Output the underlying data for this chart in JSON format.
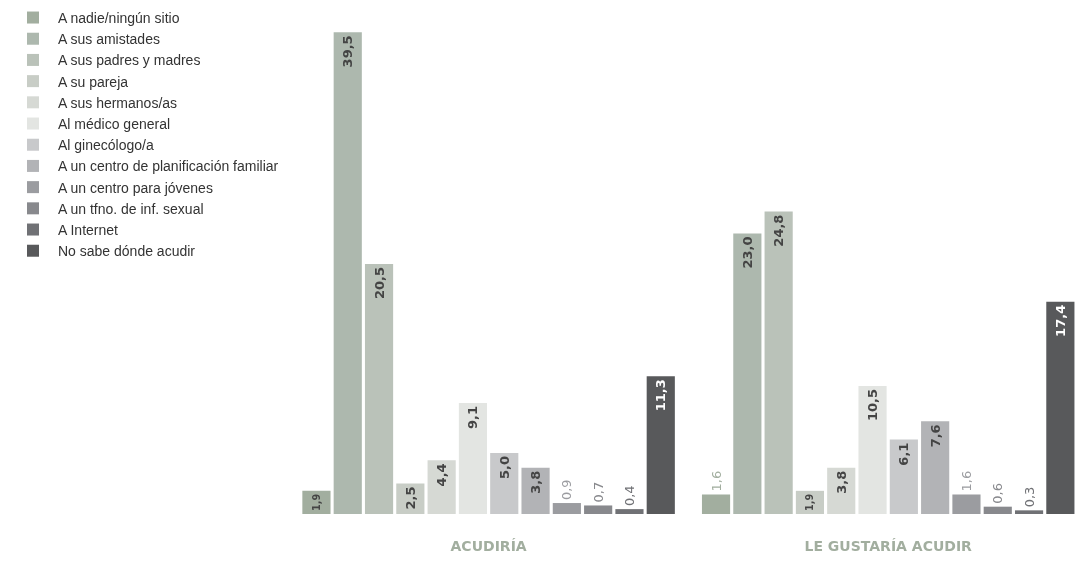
{
  "chart_data": {
    "type": "bar",
    "categories": [
      "ACUDIRÍA",
      "LE GUSTARÍA ACUDIR"
    ],
    "legend": "left",
    "series": [
      {
        "name": "A nadie/ningún sitio",
        "color": "#a2ae9f",
        "values": [
          1.9,
          1.6
        ],
        "value_labels": [
          "1,9",
          "1,6"
        ]
      },
      {
        "name": "A sus amistades",
        "color": "#adb8ae",
        "values": [
          39.5,
          23.0
        ],
        "value_labels": [
          "39,5",
          "23,0"
        ]
      },
      {
        "name": "A sus padres y madres",
        "color": "#bac2b9",
        "values": [
          20.5,
          24.8
        ],
        "value_labels": [
          "20,5",
          "24,8"
        ]
      },
      {
        "name": "A su pareja",
        "color": "#c8cdc6",
        "values": [
          2.5,
          1.9
        ],
        "value_labels": [
          "2,5",
          "1,9"
        ]
      },
      {
        "name": "A sus hermanos/as",
        "color": "#d6d9d4",
        "values": [
          4.4,
          3.8
        ],
        "value_labels": [
          "4,4",
          "3,8"
        ]
      },
      {
        "name": "Al médico general",
        "color": "#e3e5e2",
        "values": [
          9.1,
          10.5
        ],
        "value_labels": [
          "9,1",
          "10,5"
        ]
      },
      {
        "name": "Al ginecólogo/a",
        "color": "#c8c9cb",
        "values": [
          5.0,
          6.1
        ],
        "value_labels": [
          "5,0",
          "6,1"
        ]
      },
      {
        "name": "A un centro de planificación familiar",
        "color": "#b2b3b6",
        "values": [
          3.8,
          7.6
        ],
        "value_labels": [
          "3,8",
          "7,6"
        ]
      },
      {
        "name": "A un centro para jóvenes",
        "color": "#9b9ca0",
        "values": [
          0.9,
          1.6
        ],
        "value_labels": [
          "0,9",
          "1,6"
        ]
      },
      {
        "name": "A un tfno. de inf. sexual",
        "color": "#88898d",
        "values": [
          0.7,
          0.6
        ],
        "value_labels": [
          "0,7",
          "0,6"
        ]
      },
      {
        "name": "A Internet",
        "color": "#707175",
        "values": [
          0.4,
          0.3
        ],
        "value_labels": [
          "0,4",
          "0,3"
        ]
      },
      {
        "name": "No sabe dónde acudir",
        "color": "#58595b",
        "values": [
          11.3,
          17.4
        ],
        "value_labels": [
          "11,3",
          "17,4"
        ]
      }
    ]
  }
}
